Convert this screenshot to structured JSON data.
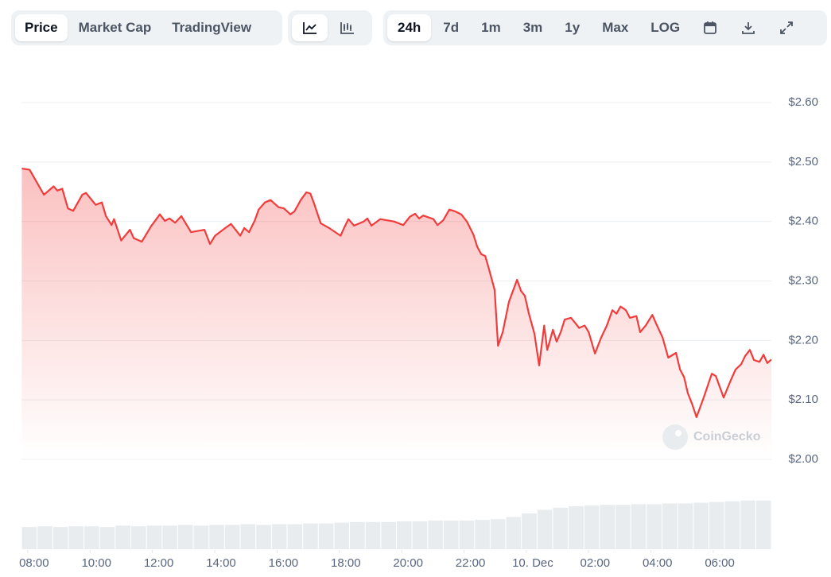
{
  "toolbar": {
    "views": [
      "Price",
      "Market Cap",
      "TradingView"
    ],
    "active_view": 0,
    "ranges": [
      "24h",
      "7d",
      "1m",
      "3m",
      "1y",
      "Max",
      "LOG"
    ],
    "active_range": 0
  },
  "chart_data": {
    "type": "area",
    "color": "#f23b3b",
    "watermark": "CoinGecko",
    "x": [
      7.81,
      8.06,
      8.27,
      8.52,
      8.83,
      8.95,
      9.11,
      9.29,
      9.46,
      9.75,
      9.87,
      10.18,
      10.38,
      10.51,
      10.69,
      10.77,
      11.0,
      11.28,
      11.4,
      11.66,
      11.96,
      12.24,
      12.4,
      12.55,
      12.73,
      12.93,
      13.24,
      13.55,
      13.67,
      13.85,
      14.01,
      14.34,
      14.52,
      14.82,
      14.95,
      15.1,
      15.28,
      15.41,
      15.61,
      15.79,
      16.05,
      16.22,
      16.43,
      16.56,
      16.76,
      16.94,
      17.07,
      17.19,
      17.4,
      17.7,
      18.04,
      18.16,
      18.29,
      18.47,
      18.78,
      18.9,
      19.03,
      19.31,
      19.75,
      20.05,
      20.26,
      20.43,
      20.56,
      20.69,
      21.02,
      21.15,
      21.33,
      21.53,
      21.71,
      21.91,
      22.09,
      22.3,
      22.42,
      22.55,
      22.68,
      22.81,
      22.98,
      23.09,
      23.24,
      23.44,
      23.7,
      23.83,
      23.95,
      24.08,
      24.26,
      24.41,
      24.57,
      24.67,
      24.85,
      24.97,
      25.1,
      25.23,
      25.43,
      25.54,
      25.69,
      25.87,
      26.0,
      26.2,
      26.4,
      26.58,
      26.76,
      26.89,
      27.02,
      27.19,
      27.32,
      27.53,
      27.65,
      27.83,
      28.04,
      28.19,
      28.37,
      28.55,
      28.8,
      28.93,
      29.06,
      29.18,
      29.31,
      29.46,
      29.69,
      29.95,
      30.08,
      30.33,
      30.54,
      30.71,
      30.89,
      31.02,
      31.17,
      31.3,
      31.48,
      31.61,
      31.73,
      31.86
    ],
    "values": [
      2.489,
      2.487,
      2.468,
      2.445,
      2.459,
      2.452,
      2.455,
      2.422,
      2.418,
      2.445,
      2.448,
      2.428,
      2.432,
      2.409,
      2.394,
      2.404,
      2.368,
      2.386,
      2.372,
      2.366,
      2.392,
      2.412,
      2.401,
      2.405,
      2.398,
      2.409,
      2.382,
      2.385,
      2.386,
      2.362,
      2.376,
      2.389,
      2.396,
      2.376,
      2.389,
      2.382,
      2.401,
      2.42,
      2.432,
      2.436,
      2.424,
      2.422,
      2.412,
      2.417,
      2.436,
      2.449,
      2.447,
      2.43,
      2.397,
      2.388,
      2.376,
      2.39,
      2.404,
      2.393,
      2.4,
      2.405,
      2.393,
      2.404,
      2.4,
      2.394,
      2.408,
      2.413,
      2.405,
      2.41,
      2.404,
      2.394,
      2.402,
      2.42,
      2.417,
      2.412,
      2.4,
      2.378,
      2.358,
      2.345,
      2.342,
      2.318,
      2.285,
      2.191,
      2.214,
      2.265,
      2.302,
      2.283,
      2.275,
      2.245,
      2.211,
      2.158,
      2.225,
      2.184,
      2.218,
      2.198,
      2.214,
      2.235,
      2.238,
      2.231,
      2.221,
      2.225,
      2.214,
      2.178,
      2.205,
      2.225,
      2.251,
      2.245,
      2.257,
      2.251,
      2.238,
      2.241,
      2.214,
      2.225,
      2.243,
      2.225,
      2.205,
      2.171,
      2.179,
      2.151,
      2.138,
      2.111,
      2.094,
      2.071,
      2.104,
      2.144,
      2.14,
      2.104,
      2.131,
      2.151,
      2.16,
      2.174,
      2.184,
      2.167,
      2.164,
      2.176,
      2.162,
      2.168
    ],
    "xlim": [
      7.8,
      31.86
    ],
    "xticks": [
      {
        "value": 8,
        "label": "08:00"
      },
      {
        "value": 10,
        "label": "10:00"
      },
      {
        "value": 12,
        "label": "12:00"
      },
      {
        "value": 14,
        "label": "14:00"
      },
      {
        "value": 16,
        "label": "16:00"
      },
      {
        "value": 18,
        "label": "18:00"
      },
      {
        "value": 20,
        "label": "20:00"
      },
      {
        "value": 22,
        "label": "22:00"
      },
      {
        "value": 24,
        "label": "10. Dec"
      },
      {
        "value": 26,
        "label": "02:00"
      },
      {
        "value": 28,
        "label": "04:00"
      },
      {
        "value": 30,
        "label": "06:00"
      }
    ],
    "ylim": [
      2.0,
      2.6
    ],
    "yticks": [
      {
        "value": 2.0,
        "label": "$2.00"
      },
      {
        "value": 2.1,
        "label": "$2.10"
      },
      {
        "value": 2.2,
        "label": "$2.20"
      },
      {
        "value": 2.3,
        "label": "$2.30"
      },
      {
        "value": 2.4,
        "label": "$2.40"
      },
      {
        "value": 2.5,
        "label": "$2.50"
      },
      {
        "value": 2.6,
        "label": "$2.60"
      }
    ],
    "grid": true,
    "volume": {
      "color": "#e9ecef",
      "vlim": [
        0,
        100
      ],
      "values": [
        31,
        32,
        31,
        32,
        32,
        31,
        33,
        32,
        33,
        33,
        34,
        33,
        34,
        34,
        35,
        34,
        35,
        35,
        36,
        36,
        37,
        38,
        38,
        38,
        39,
        39,
        40,
        40,
        40,
        41,
        42,
        45,
        50,
        55,
        58,
        60,
        61,
        62,
        62,
        63,
        63,
        64,
        64,
        65,
        66,
        67,
        68,
        68
      ]
    }
  }
}
